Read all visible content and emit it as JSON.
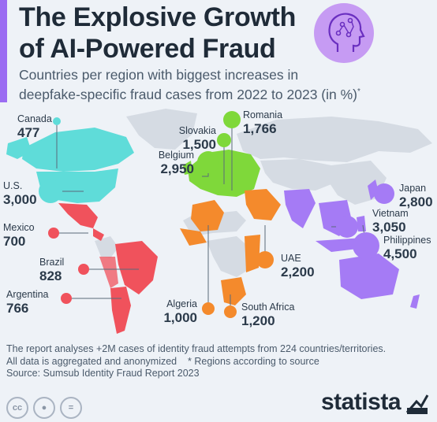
{
  "header": {
    "title_line1": "The Explosive Growth",
    "title_line2": "of AI-Powered Fraud",
    "subtitle_line1": "Countries per region with biggest increases in",
    "subtitle_line2": "deepfake-specific fraud cases from 2022 to 2023 (in %)",
    "subtitle_mark": "*",
    "icon": "ai-head-icon"
  },
  "colors": {
    "north_america": "#5fdcd9",
    "latin_america": "#f0525c",
    "europe": "#7fd83a",
    "africa_me": "#f48a2c",
    "asia_pacific": "#a57bf5",
    "land": "#d5dbe3",
    "accent": "#9b6cf2"
  },
  "countries": [
    {
      "name": "Canada",
      "value": "477"
    },
    {
      "name": "U.S.",
      "value": "3,000"
    },
    {
      "name": "Mexico",
      "value": "700"
    },
    {
      "name": "Brazil",
      "value": "828"
    },
    {
      "name": "Argentina",
      "value": "766"
    },
    {
      "name": "Romania",
      "value": "1,766"
    },
    {
      "name": "Slovakia",
      "value": "1,500"
    },
    {
      "name": "Belgium",
      "value": "2,950"
    },
    {
      "name": "UAE",
      "value": "2,200"
    },
    {
      "name": "Algeria",
      "value": "1,000"
    },
    {
      "name": "South Africa",
      "value": "1,200"
    },
    {
      "name": "Japan",
      "value": "2,800"
    },
    {
      "name": "Vietnam",
      "value": "3,050"
    },
    {
      "name": "Philippines",
      "value": "4,500"
    }
  ],
  "footer": {
    "line1": "The report analyses +2M cases of identity fraud attempts from 224 countries/territories.",
    "line2": "All data is aggregated and anonymized    * Regions according to source",
    "line3": "Source: Sumsub Identity Fraud Report 2023"
  },
  "license_icons": [
    "cc-icon",
    "attribution-icon",
    "no-derivatives-icon"
  ],
  "brand": "statista"
}
